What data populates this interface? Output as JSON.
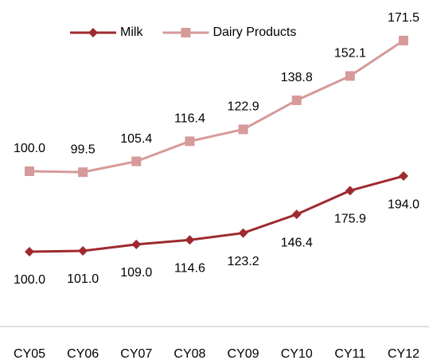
{
  "chart_data": {
    "type": "line",
    "categories": [
      "CY05",
      "CY06",
      "CY07",
      "CY08",
      "CY09",
      "CY10",
      "CY11",
      "CY12"
    ],
    "series": [
      {
        "name": "Milk",
        "color": "#9e2a2f",
        "marker": "diamond",
        "axis": "y2",
        "values": [
          100,
          101,
          109,
          114.6,
          123.2,
          146.4,
          175.9,
          194
        ],
        "value_labels": [
          "100.0",
          "101.0",
          "109.0",
          "114.6",
          "123.2",
          "146.4",
          "175.9",
          "194.0"
        ]
      },
      {
        "name": "Dairy Products",
        "color": "#d69a9a",
        "marker": "square",
        "values": [
          100,
          99.5,
          105.4,
          116.4,
          122.9,
          138.8,
          152.1,
          171.5
        ],
        "value_labels": [
          "100.0",
          "99.5",
          "105.4",
          "116.4",
          "122.9",
          "138.8",
          "152.1",
          "171.5"
        ]
      }
    ],
    "ylim": [
      12,
      188
    ],
    "y2lim": [
      0,
      400
    ],
    "legend": "top"
  }
}
